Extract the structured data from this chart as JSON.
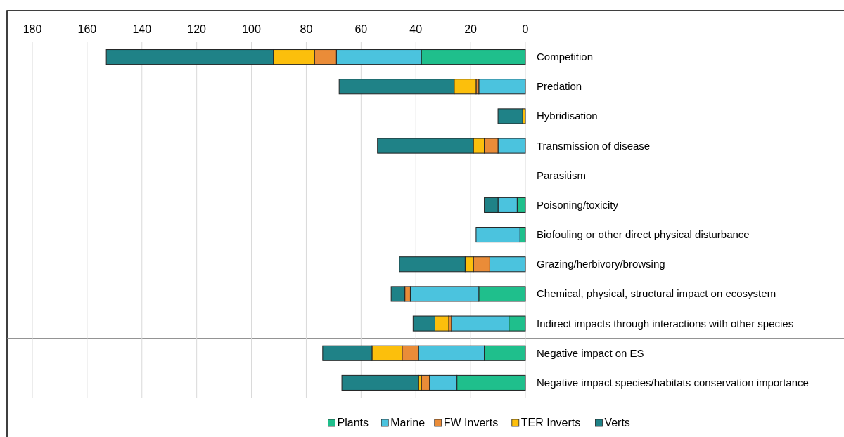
{
  "chart_data": {
    "type": "bar",
    "orientation": "horizontal",
    "stacked": true,
    "categories": [
      "Competition",
      "Predation",
      "Hybridisation",
      "Transmission of disease",
      "Parasitism",
      "Poisoning/toxicity",
      "Biofouling or other direct physical disturbance",
      "Grazing/herbivory/browsing",
      "Chemical, physical, structural impact on ecosystem",
      "Indirect impacts through interactions with other species",
      "Negative impact on ES",
      "Negative impact species/habitats conservation importance"
    ],
    "series": [
      {
        "name": "Plants",
        "color": "#1fbf8c",
        "values": [
          38,
          0,
          0,
          0,
          0,
          3,
          2,
          0,
          17,
          6,
          15,
          25
        ]
      },
      {
        "name": "Marine",
        "color": "#4bc3de",
        "values": [
          31,
          17,
          0,
          10,
          0,
          7,
          16,
          13,
          25,
          21,
          24,
          10
        ]
      },
      {
        "name": "FW Inverts",
        "color": "#ea8c38",
        "values": [
          8,
          1,
          0,
          5,
          0,
          0,
          0,
          6,
          2,
          1,
          6,
          3
        ]
      },
      {
        "name": "TER Inverts",
        "color": "#fcbf0c",
        "values": [
          15,
          8,
          1,
          4,
          0,
          0,
          0,
          3,
          0,
          5,
          11,
          1
        ]
      },
      {
        "name": "Verts",
        "color": "#1f8287",
        "values": [
          61,
          42,
          9,
          35,
          0,
          5,
          0,
          24,
          5,
          8,
          18,
          28
        ]
      }
    ],
    "xlim": [
      180,
      0
    ],
    "xticks": [
      180,
      160,
      140,
      120,
      100,
      80,
      60,
      40,
      20,
      0
    ],
    "grid": "x",
    "legend": "bottom",
    "ref_lines": [
      {
        "axis": "y",
        "value": "Negative impact on ES",
        "color": "#808080"
      }
    ]
  }
}
